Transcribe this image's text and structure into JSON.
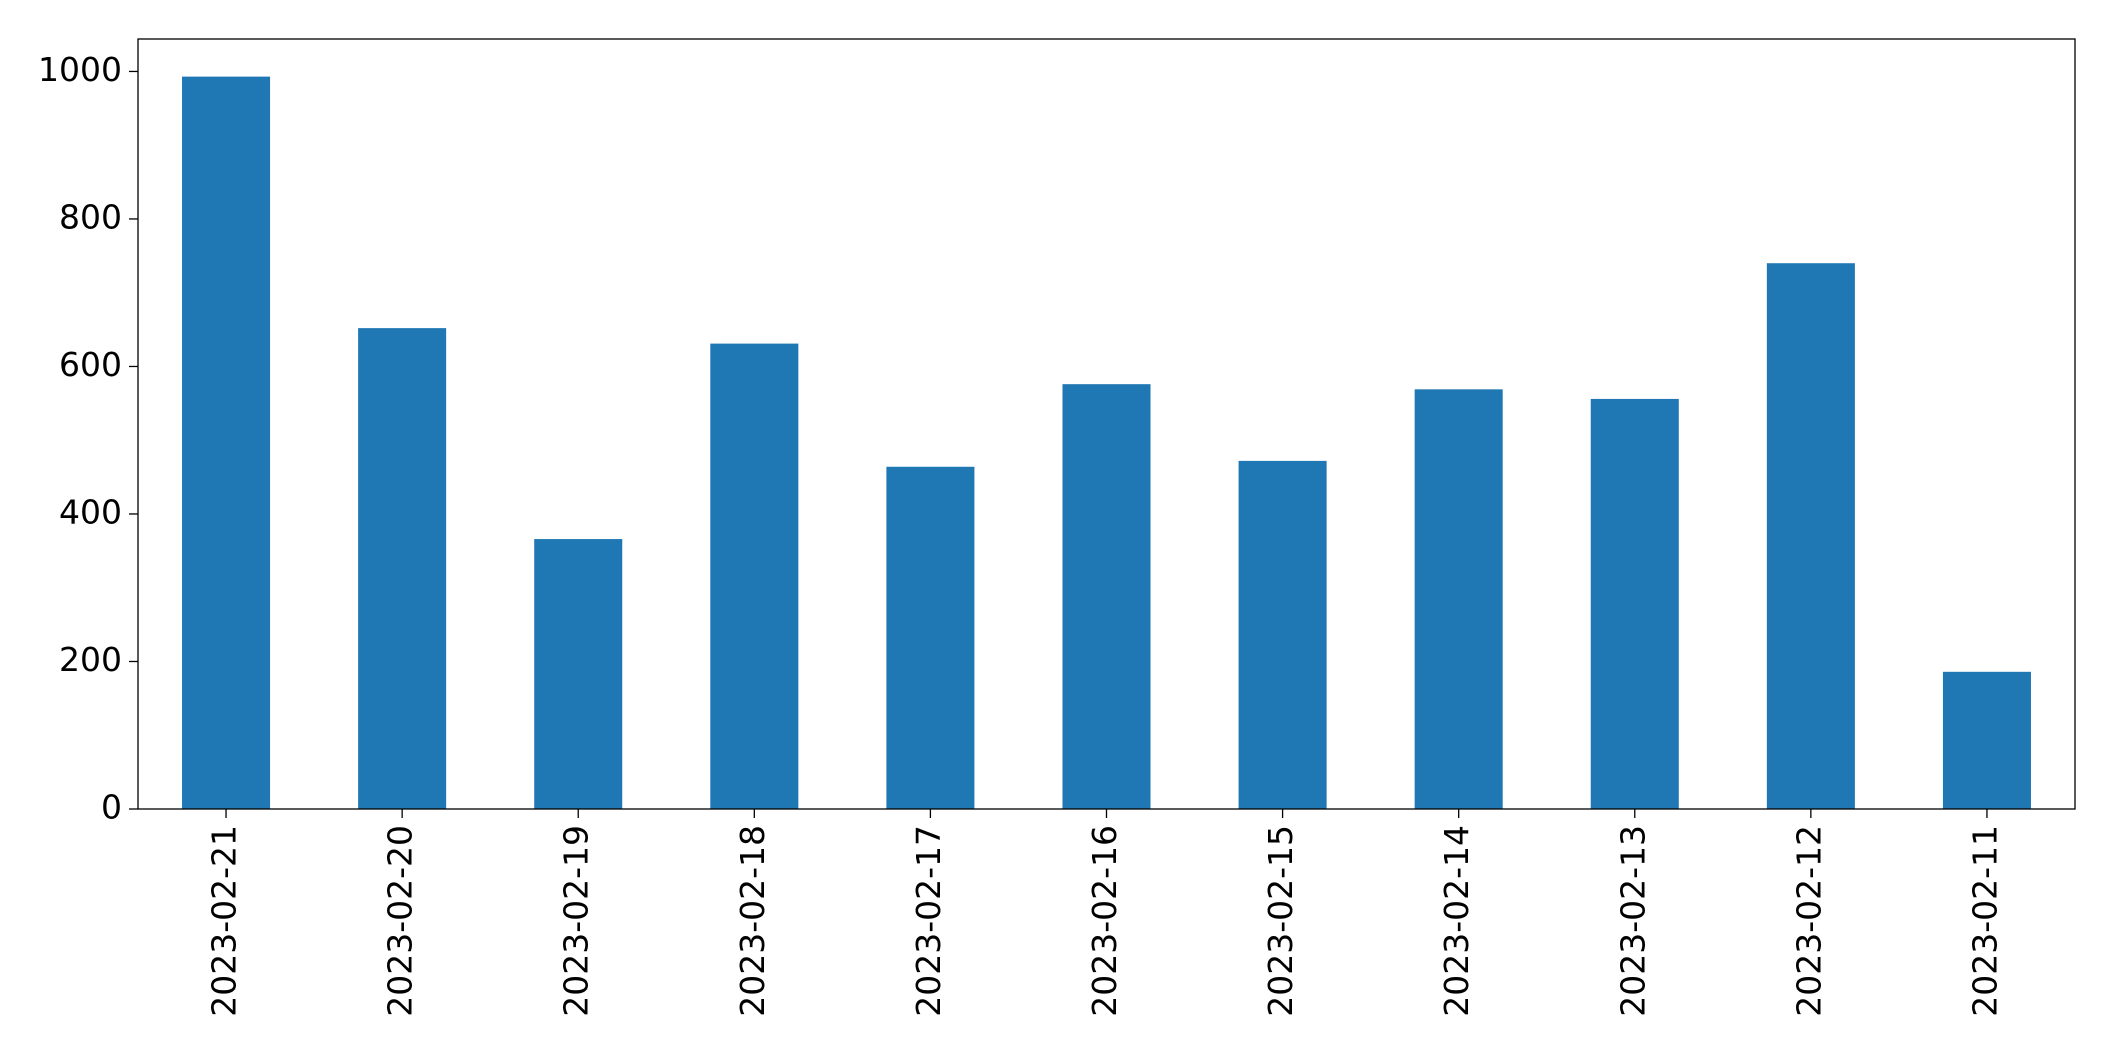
{
  "chart_data": {
    "type": "bar",
    "categories": [
      "2023-02-21",
      "2023-02-20",
      "2023-02-19",
      "2023-02-18",
      "2023-02-17",
      "2023-02-16",
      "2023-02-15",
      "2023-02-14",
      "2023-02-13",
      "2023-02-12",
      "2023-02-11"
    ],
    "values": [
      993,
      652,
      366,
      631,
      464,
      576,
      472,
      569,
      556,
      740,
      186
    ],
    "color": "#1f77b4",
    "ylim": [
      0,
      1044
    ],
    "yticks": [
      0,
      200,
      400,
      600,
      800,
      1000
    ],
    "grid": false
  }
}
